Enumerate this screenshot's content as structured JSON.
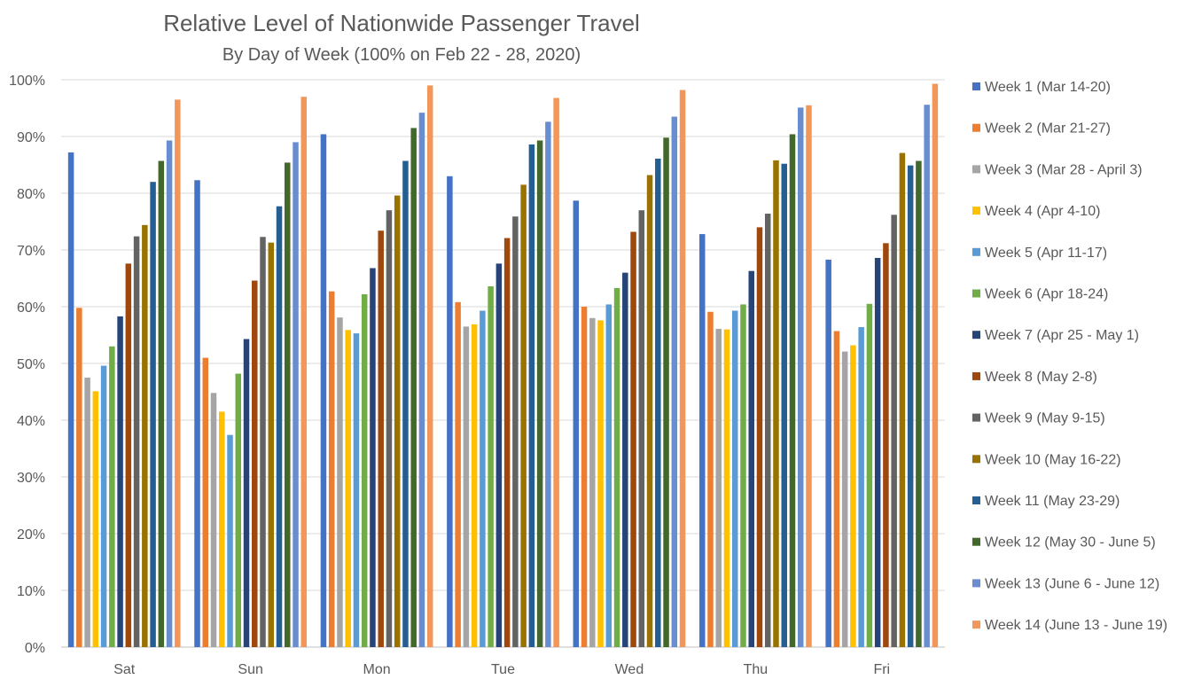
{
  "chart_data": {
    "type": "bar",
    "title": "Relative Level of Nationwide Passenger Travel",
    "subtitle": "By Day of Week (100% on Feb 22 - 28, 2020)",
    "xlabel": "",
    "ylabel": "",
    "ylim": [
      0,
      100
    ],
    "y_ticks": [
      "0%",
      "10%",
      "20%",
      "30%",
      "40%",
      "50%",
      "60%",
      "70%",
      "80%",
      "90%",
      "100%"
    ],
    "y_tick_values": [
      0,
      10,
      20,
      30,
      40,
      50,
      60,
      70,
      80,
      90,
      100
    ],
    "grid": true,
    "legend_position": "right",
    "categories": [
      "Sat",
      "Sun",
      "Mon",
      "Tue",
      "Wed",
      "Thu",
      "Fri"
    ],
    "series": [
      {
        "name": "Week 1 (Mar 14-20)",
        "color": "#4472C4",
        "values": [
          87.2,
          82.3,
          90.4,
          83.0,
          78.7,
          72.8,
          68.3
        ]
      },
      {
        "name": "Week 2 (Mar 21-27)",
        "color": "#ED7D31",
        "values": [
          59.8,
          51.0,
          62.7,
          60.8,
          60.0,
          59.1,
          55.7
        ]
      },
      {
        "name": "Week 3 (Mar 28 - April 3)",
        "color": "#A5A5A5",
        "values": [
          47.5,
          44.8,
          58.1,
          56.5,
          58.0,
          56.1,
          52.1
        ]
      },
      {
        "name": "Week 4 (Apr 4-10)",
        "color": "#FFC000",
        "values": [
          45.1,
          41.5,
          55.9,
          56.9,
          57.6,
          56.0,
          53.2
        ]
      },
      {
        "name": "Week 5 (Apr 11-17)",
        "color": "#5B9BD5",
        "values": [
          49.6,
          37.4,
          55.3,
          59.3,
          60.4,
          59.3,
          56.4
        ]
      },
      {
        "name": "Week 6 (Apr 18-24)",
        "color": "#70AD47",
        "values": [
          53.0,
          48.2,
          62.2,
          63.6,
          63.3,
          60.4,
          60.5
        ]
      },
      {
        "name": "Week 7 (Apr 25 - May 1)",
        "color": "#264478",
        "values": [
          58.3,
          54.3,
          66.8,
          67.6,
          66.0,
          66.3,
          68.6
        ]
      },
      {
        "name": "Week 8 (May 2-8)",
        "color": "#9E480E",
        "values": [
          67.6,
          64.6,
          73.4,
          72.1,
          73.2,
          74.0,
          71.2
        ]
      },
      {
        "name": "Week 9 (May 9-15)",
        "color": "#636363",
        "values": [
          72.4,
          72.3,
          77.0,
          75.9,
          77.0,
          76.4,
          76.2
        ]
      },
      {
        "name": "Week 10 (May 16-22)",
        "color": "#997300",
        "values": [
          74.4,
          71.3,
          79.6,
          81.5,
          83.2,
          85.8,
          87.1
        ]
      },
      {
        "name": "Week 11 (May 23-29)",
        "color": "#255E91",
        "values": [
          82.0,
          77.7,
          85.7,
          88.6,
          86.1,
          85.2,
          84.9
        ]
      },
      {
        "name": "Week 12 (May 30 - June 5)",
        "color": "#43682B",
        "values": [
          85.7,
          85.4,
          91.5,
          89.3,
          89.8,
          90.4,
          85.7
        ]
      },
      {
        "name": "Week 13 (June 6 - June 12)",
        "color": "#698ED0",
        "values": [
          89.3,
          89.0,
          94.2,
          92.6,
          93.5,
          95.1,
          95.6
        ]
      },
      {
        "name": "Week 14 (June 13 - June 19)",
        "color": "#F1975A",
        "values": [
          96.5,
          97.0,
          99.0,
          96.8,
          98.2,
          95.5,
          99.3
        ]
      }
    ]
  }
}
